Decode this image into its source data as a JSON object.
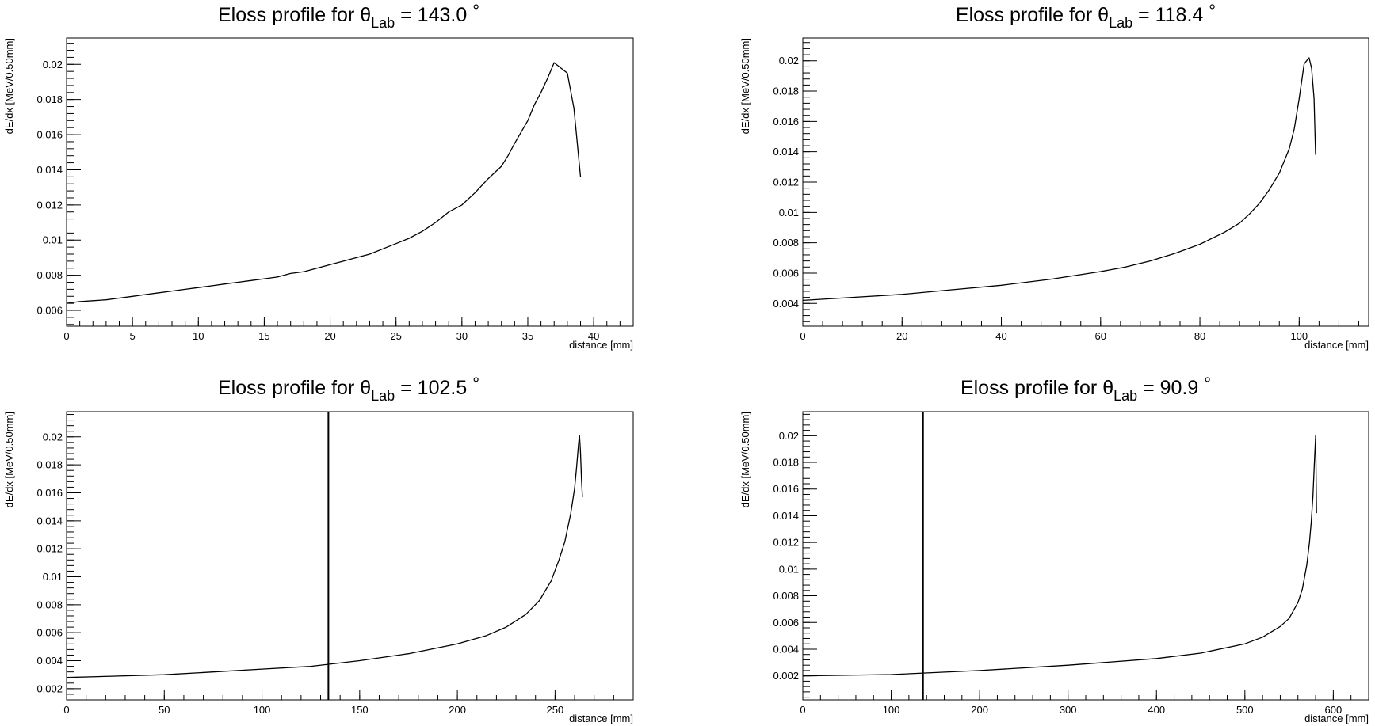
{
  "chart_data": [
    {
      "type": "line",
      "title": "Eloss profile for",
      "title_symbol": "θ",
      "title_subscript": "Lab",
      "title_value": "= 143.0",
      "title_unit": "°",
      "xlabel": "distance [mm]",
      "ylabel": "dE/dx [MeV/0.50mm]",
      "xlim": [
        0,
        43
      ],
      "ylim": [
        0.0051,
        0.0215
      ],
      "xticks": [
        0,
        5,
        10,
        15,
        20,
        25,
        30,
        35,
        40
      ],
      "xtick_labels": [
        "0",
        "5",
        "10",
        "15",
        "20",
        "25",
        "30",
        "35",
        "40"
      ],
      "yticks": [
        0.006,
        0.008,
        0.01,
        0.012,
        0.014,
        0.016,
        0.018,
        0.02
      ],
      "ytick_labels": [
        "0.006",
        "0.008",
        "0.01",
        "0.012",
        "0.014",
        "0.016",
        "0.018",
        "0.02"
      ],
      "x_minor_step": 1,
      "y_minor_step": 0.0004,
      "grid": false,
      "vline": null,
      "series": [
        {
          "x": [
            0,
            1,
            2,
            3,
            4,
            5,
            6,
            7,
            8,
            9,
            10,
            11,
            12,
            13,
            14,
            15,
            16,
            17,
            18,
            19,
            20,
            21,
            22,
            23,
            24,
            25,
            26,
            27,
            28,
            29,
            30,
            31,
            32,
            33,
            33.5,
            34,
            35,
            35.5,
            36,
            36.5,
            37,
            38,
            38.5,
            39
          ],
          "y": [
            0.0064,
            0.0065,
            0.00655,
            0.0066,
            0.0067,
            0.0068,
            0.0069,
            0.007,
            0.0071,
            0.0072,
            0.0073,
            0.0074,
            0.0075,
            0.0076,
            0.0077,
            0.0078,
            0.0079,
            0.0081,
            0.0082,
            0.0084,
            0.0086,
            0.0088,
            0.009,
            0.0092,
            0.0095,
            0.0098,
            0.0101,
            0.0105,
            0.011,
            0.0116,
            0.012,
            0.0127,
            0.0135,
            0.0142,
            0.0148,
            0.0155,
            0.0168,
            0.0177,
            0.0184,
            0.0192,
            0.0201,
            0.0195,
            0.0175,
            0.0136
          ]
        }
      ]
    },
    {
      "type": "line",
      "title": "Eloss profile for",
      "title_symbol": "θ",
      "title_subscript": "Lab",
      "title_value": "= 118.4",
      "title_unit": "°",
      "xlabel": "distance [mm]",
      "ylabel": "dE/dx [MeV/0.50mm]",
      "xlim": [
        0,
        114
      ],
      "ylim": [
        0.0025,
        0.0215
      ],
      "xticks": [
        0,
        20,
        40,
        60,
        80,
        100
      ],
      "xtick_labels": [
        "0",
        "20",
        "40",
        "60",
        "80",
        "100"
      ],
      "yticks": [
        0.004,
        0.006,
        0.008,
        0.01,
        0.012,
        0.014,
        0.016,
        0.018,
        0.02
      ],
      "ytick_labels": [
        "0.004",
        "0.006",
        "0.008",
        "0.01",
        "0.012",
        "0.014",
        "0.016",
        "0.018",
        "0.02"
      ],
      "x_minor_step": 4,
      "y_minor_step": 0.0004,
      "grid": false,
      "vline": null,
      "series": [
        {
          "x": [
            0,
            10,
            20,
            30,
            40,
            50,
            60,
            65,
            70,
            75,
            80,
            85,
            88,
            90,
            92,
            94,
            96,
            98,
            99,
            100,
            101,
            102,
            102.5,
            103,
            103.3
          ],
          "y": [
            0.0042,
            0.0044,
            0.0046,
            0.0049,
            0.0052,
            0.0056,
            0.0061,
            0.0064,
            0.0068,
            0.0073,
            0.0079,
            0.0087,
            0.0093,
            0.0099,
            0.0106,
            0.0115,
            0.0126,
            0.0142,
            0.0155,
            0.0175,
            0.0198,
            0.0202,
            0.0195,
            0.0175,
            0.0138
          ]
        }
      ]
    },
    {
      "type": "line",
      "title": "Eloss profile for",
      "title_symbol": "θ",
      "title_subscript": "Lab",
      "title_value": "= 102.5",
      "title_unit": "°",
      "xlabel": "distance [mm]",
      "ylabel": "dE/dx [MeV/0.50mm]",
      "xlim": [
        0,
        290
      ],
      "ylim": [
        0.0012,
        0.0218
      ],
      "xticks": [
        0,
        50,
        100,
        150,
        200,
        250
      ],
      "xtick_labels": [
        "0",
        "50",
        "100",
        "150",
        "200",
        "250"
      ],
      "yticks": [
        0.002,
        0.004,
        0.006,
        0.008,
        0.01,
        0.012,
        0.014,
        0.016,
        0.018,
        0.02
      ],
      "ytick_labels": [
        "0.002",
        "0.004",
        "0.006",
        "0.008",
        "0.01",
        "0.012",
        "0.014",
        "0.016",
        "0.018",
        "0.02"
      ],
      "x_minor_step": 10,
      "y_minor_step": 0.0004,
      "grid": false,
      "vline": 134,
      "series": [
        {
          "x": [
            0,
            25,
            50,
            75,
            100,
            125,
            150,
            175,
            200,
            215,
            225,
            235,
            242,
            248,
            252,
            255,
            258,
            260,
            261,
            262,
            262.5,
            263,
            263.5,
            264
          ],
          "y": [
            0.0028,
            0.0029,
            0.003,
            0.0032,
            0.0034,
            0.0036,
            0.004,
            0.0045,
            0.0052,
            0.0058,
            0.0064,
            0.0073,
            0.0083,
            0.0097,
            0.0112,
            0.0125,
            0.0145,
            0.0163,
            0.0178,
            0.0195,
            0.0201,
            0.019,
            0.017,
            0.0157
          ]
        }
      ]
    },
    {
      "type": "line",
      "title": "Eloss profile for",
      "title_symbol": "θ",
      "title_subscript": "Lab",
      "title_value": "= 90.9",
      "title_unit": "°",
      "xlabel": "distance [mm]",
      "ylabel": "dE/dx [MeV/0.50mm]",
      "xlim": [
        0,
        640
      ],
      "ylim": [
        0.0002,
        0.0218
      ],
      "xticks": [
        0,
        100,
        200,
        300,
        400,
        500,
        600
      ],
      "xtick_labels": [
        "0",
        "100",
        "200",
        "300",
        "400",
        "500",
        "600"
      ],
      "yticks": [
        0.002,
        0.004,
        0.006,
        0.008,
        0.01,
        0.012,
        0.014,
        0.016,
        0.018,
        0.02
      ],
      "ytick_labels": [
        "0.002",
        "0.004",
        "0.006",
        "0.008",
        "0.01",
        "0.012",
        "0.014",
        "0.016",
        "0.018",
        "0.02"
      ],
      "x_minor_step": 20,
      "y_minor_step": 0.0004,
      "grid": false,
      "vline": 136,
      "series": [
        {
          "x": [
            0,
            100,
            200,
            300,
            400,
            450,
            500,
            520,
            540,
            550,
            560,
            565,
            570,
            573,
            575,
            577,
            578,
            579,
            580,
            581
          ],
          "y": [
            0.002,
            0.0021,
            0.0024,
            0.0028,
            0.0033,
            0.0037,
            0.0044,
            0.0049,
            0.0057,
            0.0063,
            0.0075,
            0.0085,
            0.0103,
            0.012,
            0.0135,
            0.0155,
            0.017,
            0.0185,
            0.02,
            0.0142
          ]
        }
      ]
    }
  ]
}
